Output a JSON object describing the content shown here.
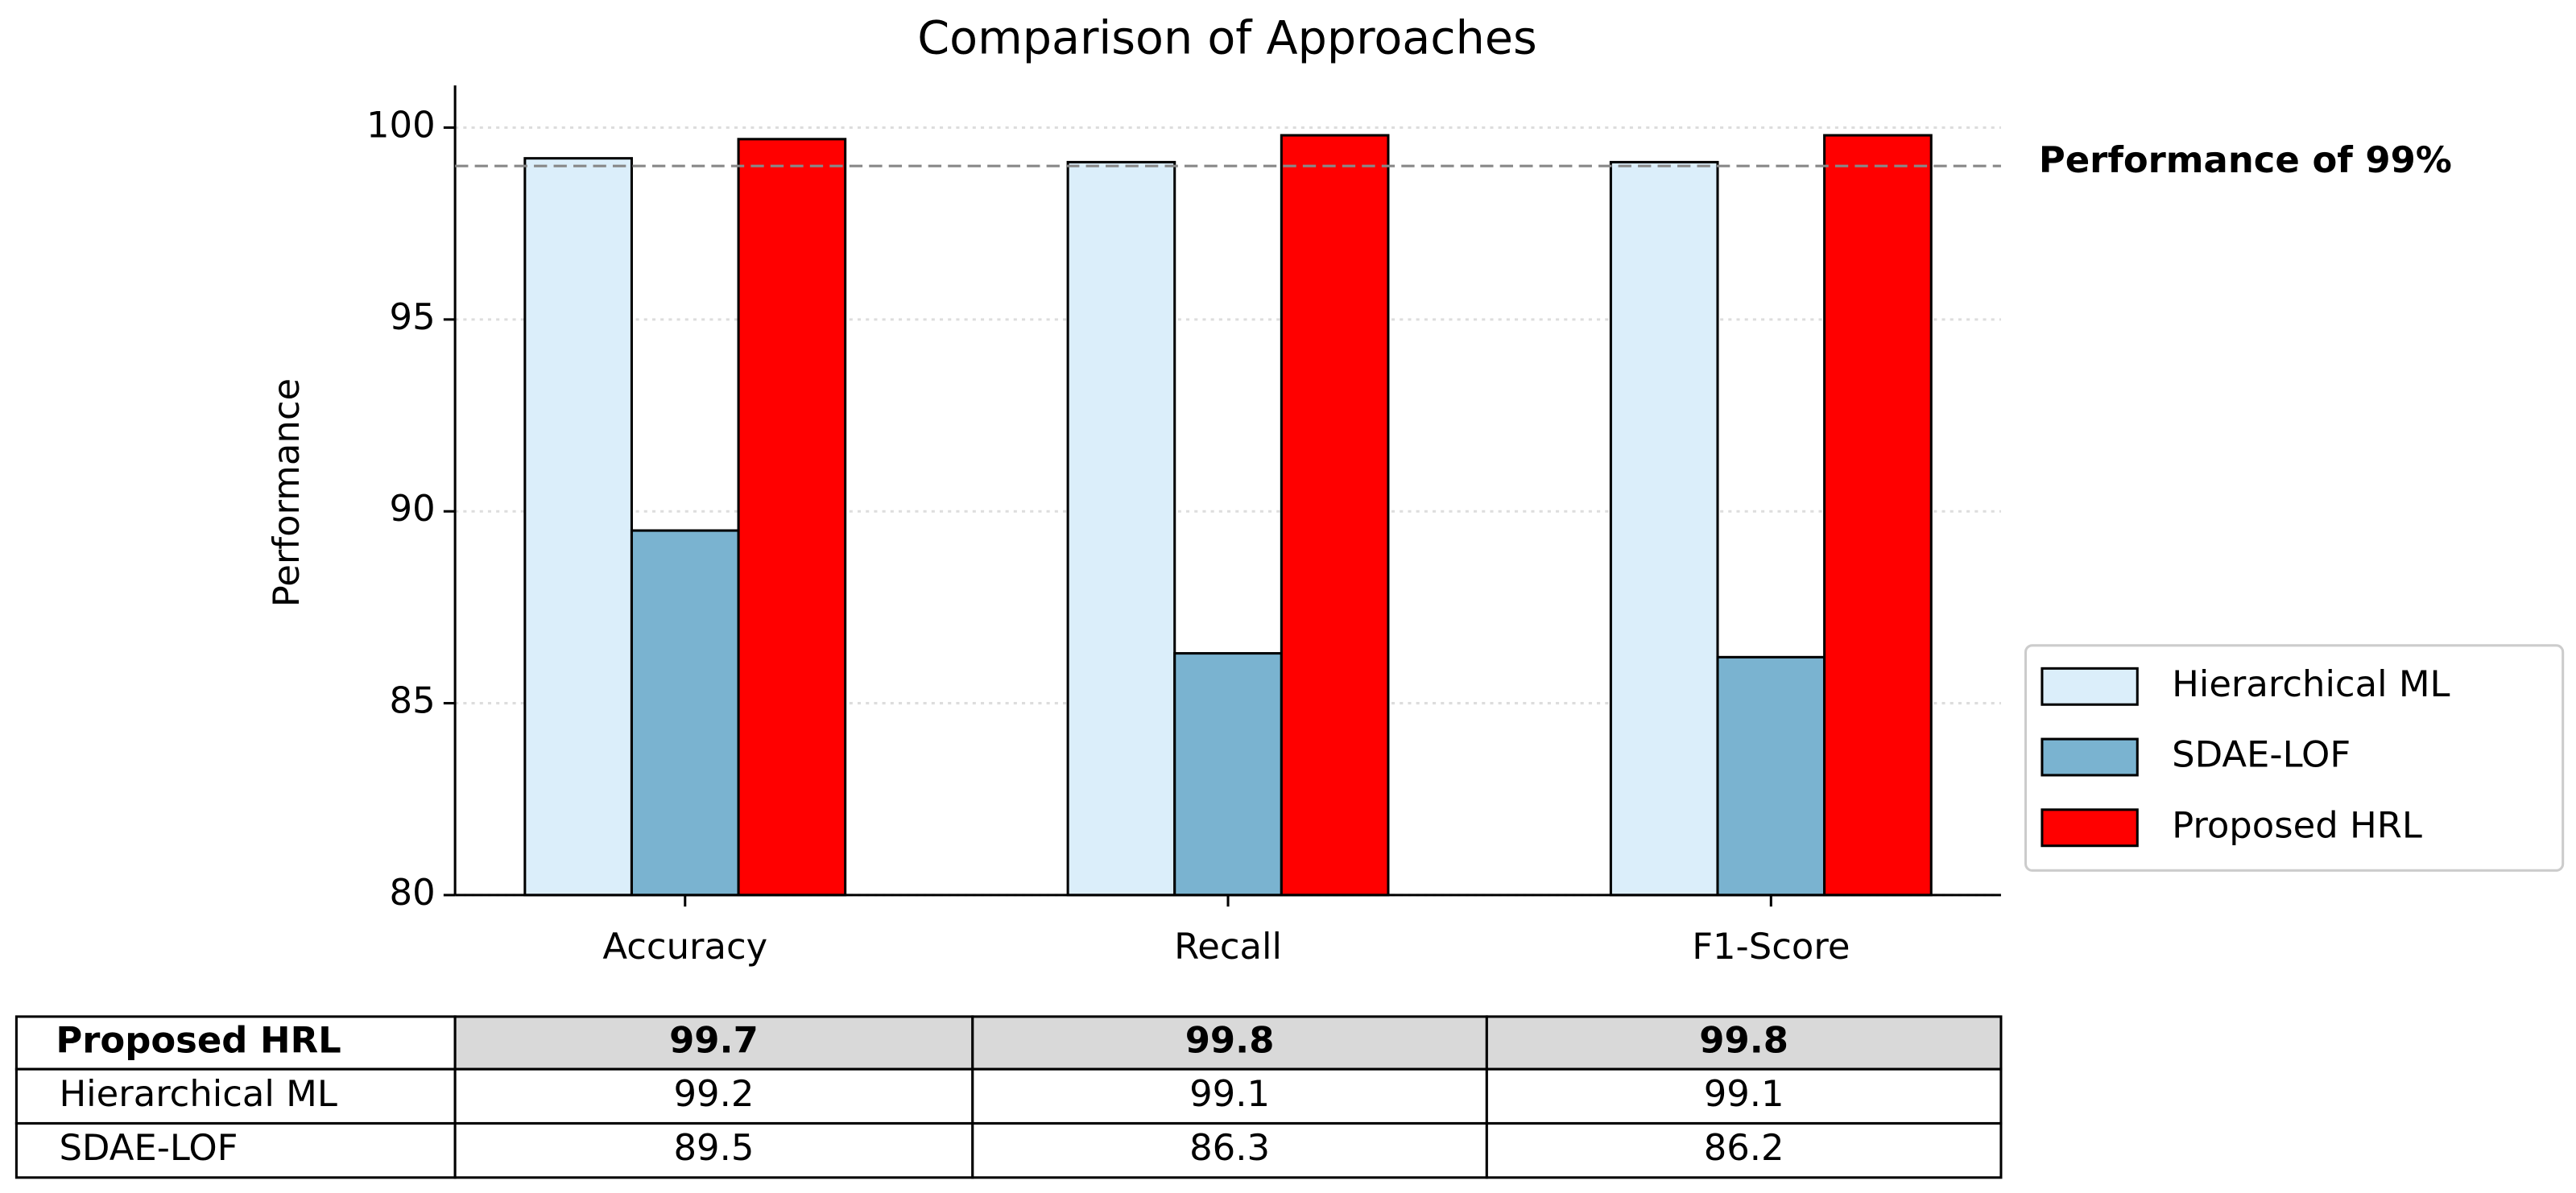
{
  "chart_data": {
    "type": "bar",
    "title": "Comparison of Approaches",
    "y_label": "Performance",
    "categories": [
      "Accuracy",
      "Recall",
      "F1-Score"
    ],
    "series": [
      {
        "name": "Hierarchical ML",
        "color": "#dbeefa",
        "values": [
          99.2,
          99.1,
          99.1
        ]
      },
      {
        "name": "SDAE-LOF",
        "color": "#7ab3d0",
        "values": [
          89.5,
          86.3,
          86.2
        ]
      },
      {
        "name": "Proposed HRL",
        "color": "#ff0000",
        "values": [
          99.7,
          99.8,
          99.8
        ]
      }
    ],
    "ylim": [
      80,
      101.1
    ],
    "yticks": [
      80,
      85,
      90,
      95,
      100
    ],
    "grid": true,
    "legend": "lower right",
    "reference_line": {
      "value": 99,
      "label": "Performance of 99%"
    }
  }
}
